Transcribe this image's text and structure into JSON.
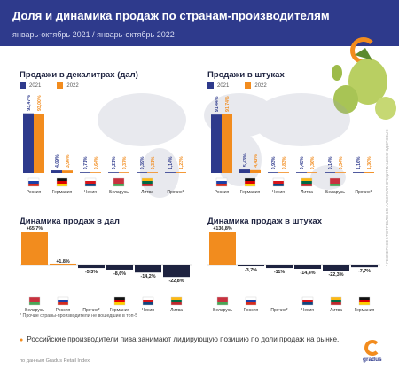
{
  "header": {
    "title": "Доля и динамика продаж по странам-производителям",
    "subtitle": "январь-октябрь 2021 / январь-октябрь 2022"
  },
  "colors": {
    "navy": "#2e3a8c",
    "orange": "#f28c1e",
    "dark": "#1e2340"
  },
  "legend": {
    "y2021": "2021",
    "y2022": "2022"
  },
  "note": "* Прочие страны-производители не вошедшие в топ-5",
  "footnote": "Российские производители пива занимают лидирующую позицию по доли продаж на рынке.",
  "source": "по данным Gradus Retail Index",
  "brand": {
    "name": "gradus",
    "sub": "analytics"
  },
  "vertical_note": "ЧРЕЗМЕРНОЕ УПОТРЕБЛЕНИЕ АЛКОГОЛЯ ВРЕДИТ ВАШЕМУ ЗДОРОВЬЮ",
  "chart_data": [
    {
      "type": "bar",
      "title": "Продажи в декалитрах (дал)",
      "categories": [
        "Россия",
        "Германия",
        "Чехия",
        "Беларусь",
        "Литва",
        "Прочие*"
      ],
      "series": [
        {
          "name": "2021",
          "values": [
            93.47,
            4.09,
            0.71,
            0.21,
            0.39,
            1.14
          ],
          "labels": [
            "93,47%",
            "4,09%",
            "0,71%",
            "0,21%",
            "0,39%",
            "1,14%"
          ]
        },
        {
          "name": "2022",
          "values": [
            93.0,
            3.94,
            0.64,
            0.37,
            0.31,
            1.23
          ],
          "labels": [
            "93,00%",
            "3,94%",
            "0,64%",
            "0,37%",
            "0,31%",
            "1,23%"
          ]
        }
      ],
      "ylim": [
        0,
        100
      ]
    },
    {
      "type": "bar",
      "title": "Продажи в штуках",
      "categories": [
        "Россия",
        "Германия",
        "Чехия",
        "Литва",
        "Беларусь",
        "Прочие*"
      ],
      "series": [
        {
          "name": "2021",
          "values": [
            91.44,
            5.43,
            0.93,
            0.45,
            0.14,
            1.16
          ],
          "labels": [
            "91,44%",
            "5,43%",
            "0,93%",
            "0,45%",
            "0,14%",
            "1,16%"
          ]
        },
        {
          "name": "2022",
          "values": [
            91.74,
            4.43,
            0.83,
            0.36,
            0.34,
            1.3
          ],
          "labels": [
            "91,74%",
            "4,43%",
            "0,83%",
            "0,36%",
            "0,34%",
            "1,30%"
          ]
        }
      ],
      "ylim": [
        0,
        100
      ]
    },
    {
      "type": "bar",
      "title": "Динамика продаж в дал",
      "categories": [
        "Беларусь",
        "Россия",
        "Прочие*",
        "Германия",
        "Чехия",
        "Литва"
      ],
      "values": [
        65.7,
        1.8,
        -5.3,
        -8.6,
        -14.2,
        -22.8
      ],
      "labels": [
        "+65,7%",
        "+1,8%",
        "-5,3%",
        "-8,6%",
        "-14,2%",
        "-22,8%"
      ]
    },
    {
      "type": "bar",
      "title": "Динамика продаж в штуках",
      "categories": [
        "Беларусь",
        "Россия",
        "Прочие*",
        "Чехия",
        "Литва",
        "Германия"
      ],
      "values": [
        136.8,
        -3.7,
        -11.0,
        -14.4,
        -22.3,
        -7.7
      ],
      "labels": [
        "+136,8%",
        "-3,7%",
        "-11%",
        "-14,4%",
        "-22,3%",
        "-7,7%"
      ]
    }
  ]
}
